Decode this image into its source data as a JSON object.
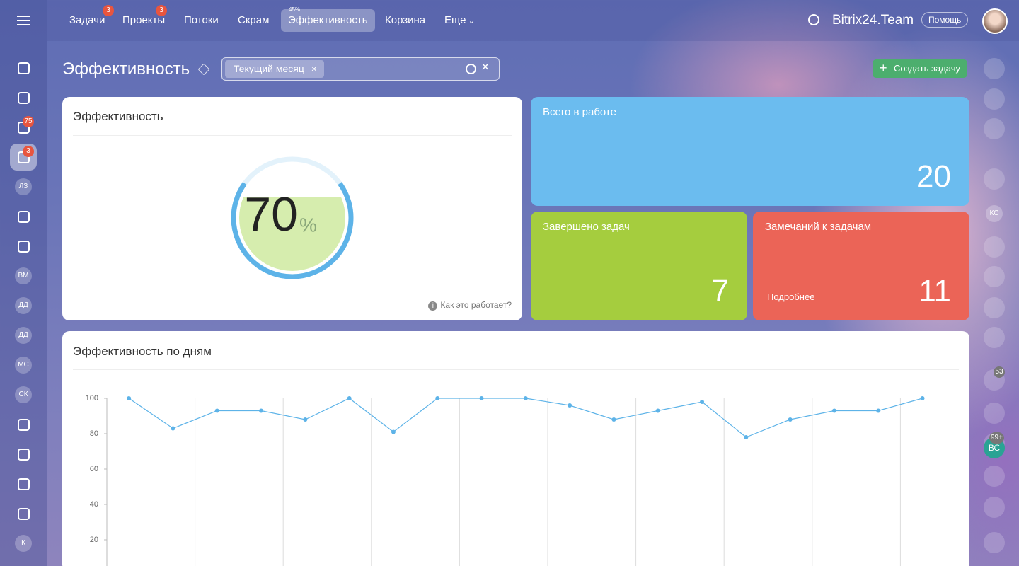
{
  "nav": {
    "items": [
      {
        "label": "Задачи",
        "badge": 3
      },
      {
        "label": "Проекты",
        "badge": 3
      },
      {
        "label": "Потоки"
      },
      {
        "label": "Скрам"
      },
      {
        "label": "Эффективность",
        "hint": "45%",
        "active": true
      },
      {
        "label": "Корзина"
      },
      {
        "label": "Еще"
      }
    ],
    "brand": "Bitrix24.Team",
    "help": "Помощь"
  },
  "left_sidebar": {
    "badges": [
      75,
      3
    ],
    "avatars": [
      "ЛЗ",
      "ВМ",
      "ДД",
      "ДД",
      "МС",
      "СК",
      "К"
    ]
  },
  "right_sidebar": {
    "avatars": [
      "КС",
      "ВС"
    ],
    "badges": [
      53,
      "99+"
    ]
  },
  "header": {
    "title": "Эффективность",
    "filter_chip": "Текущий месяц",
    "create_button": "Создать задачу"
  },
  "efficiency": {
    "title": "Эффективность",
    "value": 70,
    "unit": "%",
    "help": "Как это работает?"
  },
  "tiles": [
    {
      "title": "Всего в работе",
      "value": 20,
      "color": "#6bbcef"
    },
    {
      "title": "Завершено задач",
      "value": 7,
      "color": "#a5cd3e"
    },
    {
      "title": "Замечаний к задачам",
      "link": "Подробнее",
      "value": 11,
      "color": "#eb6457"
    }
  ],
  "chart_data": {
    "type": "line",
    "title": "Эффективность по дням",
    "categories": [
      null,
      null,
      null,
      null,
      null,
      null,
      null,
      null,
      null,
      null,
      null,
      null,
      null,
      null,
      null,
      null,
      null,
      null,
      null
    ],
    "values": [
      100,
      83,
      93,
      93,
      88,
      100,
      81,
      100,
      100,
      100,
      96,
      88,
      93,
      98,
      78,
      88,
      93,
      93,
      100
    ],
    "color": "#5db3e8",
    "ylim": [
      0,
      100
    ],
    "yticks": [
      20,
      40,
      60,
      80,
      100
    ],
    "grid": true
  }
}
